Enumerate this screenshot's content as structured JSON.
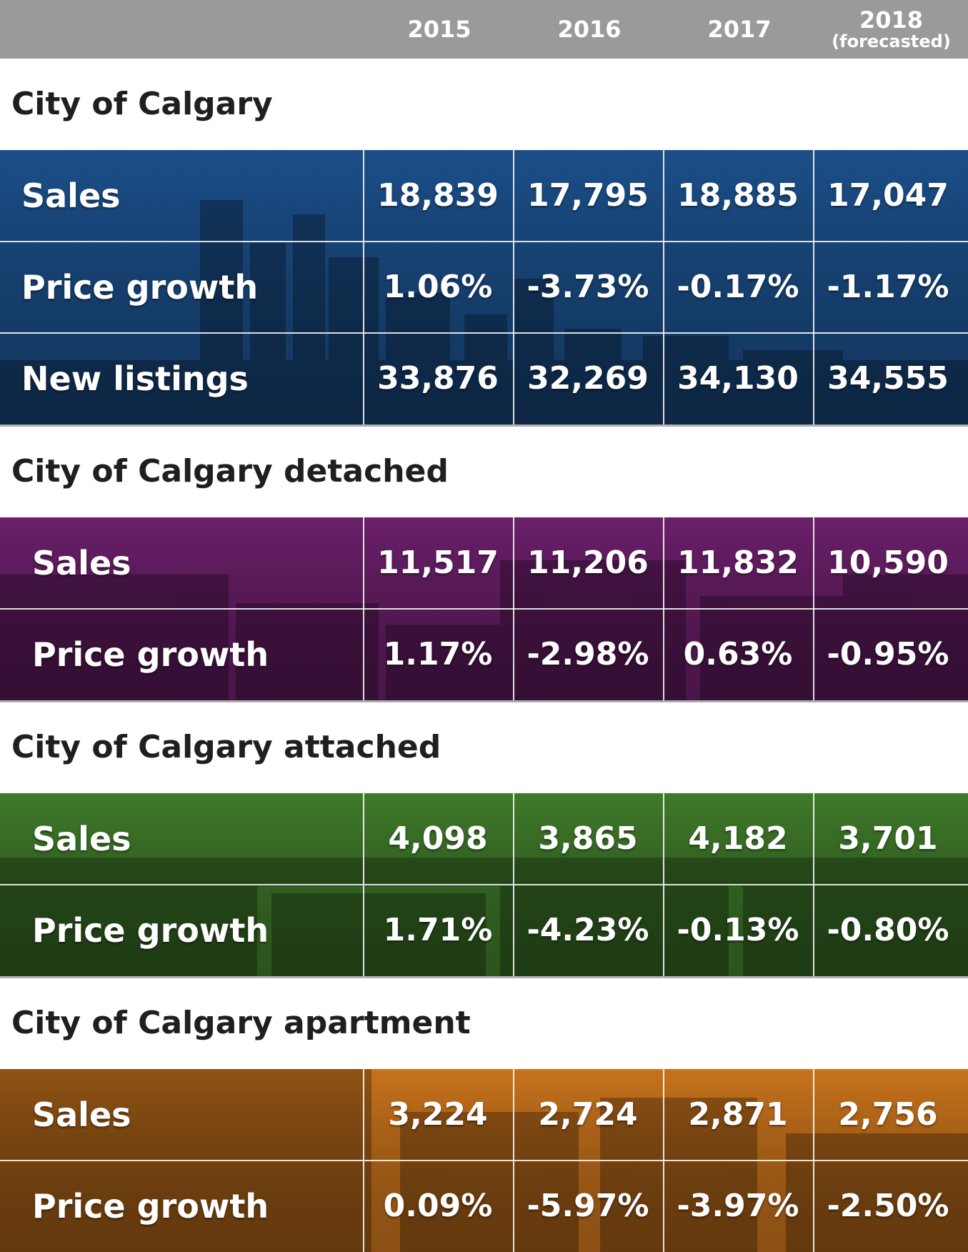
{
  "header": {
    "years": [
      {
        "main": "2015",
        "sub": ""
      },
      {
        "main": "2016",
        "sub": ""
      },
      {
        "main": "2017",
        "sub": ""
      },
      {
        "main": "2018",
        "sub": "(forecasted)"
      }
    ]
  },
  "colors": {
    "header_bg": "#9a9a9a",
    "calgary_blue": "#1b4f8a",
    "detached_purple": "#6b1f6a",
    "attached_green": "#3f7a2a",
    "apartment_orange": "#c8731c"
  },
  "chart_data": {
    "type": "table",
    "columns": [
      "2015",
      "2016",
      "2017",
      "2018 (forecasted)"
    ],
    "sections": [
      {
        "title": "City of Calgary",
        "rows": [
          {
            "label": "Sales",
            "values": [
              "18,839",
              "17,795",
              "18,885",
              "17,047"
            ]
          },
          {
            "label": "Price growth",
            "values": [
              "1.06%",
              "-3.73%",
              "-0.17%",
              "-1.17%"
            ]
          },
          {
            "label": "New listings",
            "values": [
              "33,876",
              "32,269",
              "34,130",
              "34,555"
            ]
          }
        ]
      },
      {
        "title": "City of Calgary detached",
        "rows": [
          {
            "label": "Sales",
            "values": [
              "11,517",
              "11,206",
              "11,832",
              "10,590"
            ]
          },
          {
            "label": "Price growth",
            "values": [
              "1.17%",
              "-2.98%",
              "0.63%",
              "-0.95%"
            ]
          }
        ]
      },
      {
        "title": "City of Calgary attached",
        "rows": [
          {
            "label": "Sales",
            "values": [
              "4,098",
              "3,865",
              "4,182",
              "3,701"
            ]
          },
          {
            "label": "Price growth",
            "values": [
              "1.71%",
              "-4.23%",
              "-0.13%",
              "-0.80%"
            ]
          }
        ]
      },
      {
        "title": "City of Calgary apartment",
        "rows": [
          {
            "label": "Sales",
            "values": [
              "3,224",
              "2,724",
              "2,871",
              "2,756"
            ]
          },
          {
            "label": "Price growth",
            "values": [
              "0.09%",
              "-5.97%",
              "-3.97%",
              "-2.50%"
            ]
          }
        ]
      }
    ]
  }
}
